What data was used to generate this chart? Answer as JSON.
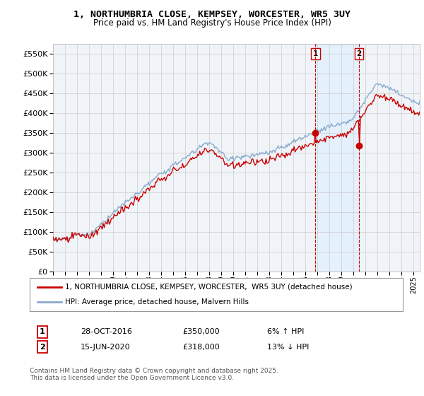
{
  "title": "1, NORTHUMBRIA CLOSE, KEMPSEY, WORCESTER, WR5 3UY",
  "subtitle": "Price paid vs. HM Land Registry's House Price Index (HPI)",
  "ytick_vals": [
    0,
    50000,
    100000,
    150000,
    200000,
    250000,
    300000,
    350000,
    400000,
    450000,
    500000,
    550000
  ],
  "ylim": [
    0,
    575000
  ],
  "xlim_start": 1995.0,
  "xlim_end": 2025.5,
  "sale1_x": 2016.83,
  "sale1_y": 350000,
  "sale2_x": 2020.46,
  "sale2_y": 318000,
  "legend_line1": "1, NORTHUMBRIA CLOSE, KEMPSEY, WORCESTER,  WR5 3UY (detached house)",
  "legend_line2": "HPI: Average price, detached house, Malvern Hills",
  "ann1_label": "1",
  "ann1_date": "28-OCT-2016",
  "ann1_price": "£350,000",
  "ann1_hpi": "6% ↑ HPI",
  "ann2_label": "2",
  "ann2_date": "15-JUN-2020",
  "ann2_price": "£318,000",
  "ann2_hpi": "13% ↓ HPI",
  "footer": "Contains HM Land Registry data © Crown copyright and database right 2025.\nThis data is licensed under the Open Government Licence v3.0.",
  "color_red": "#cc0000",
  "color_blue": "#88aacc",
  "color_fill": "#ddeeff",
  "color_vline": "#cc0000",
  "background_chart": "#f0f4f8",
  "background_fig": "#ffffff"
}
